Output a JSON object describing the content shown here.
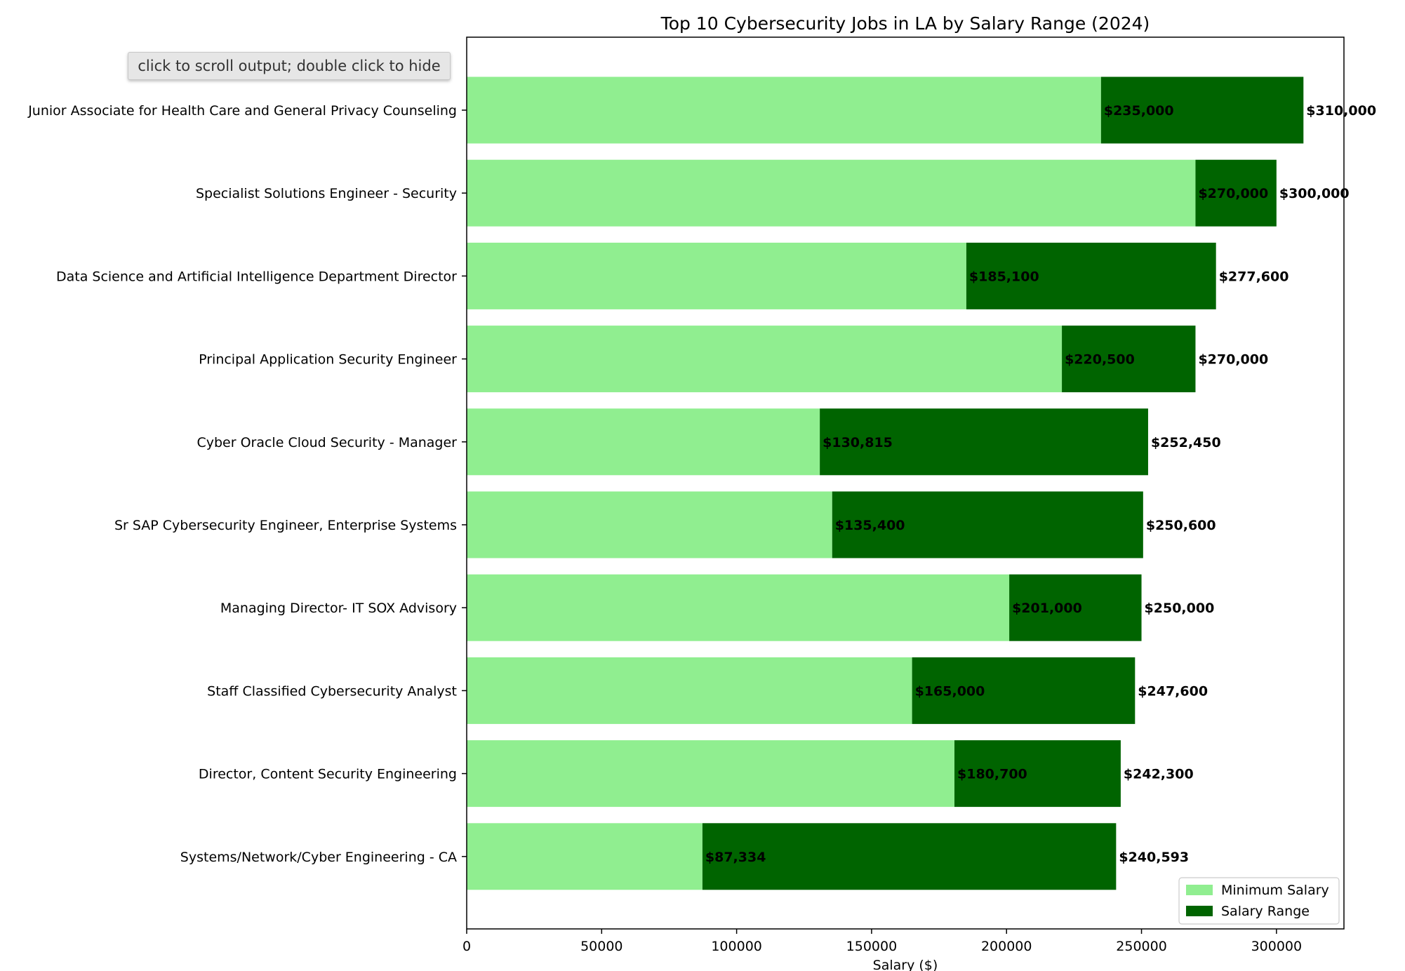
{
  "output_toggle": {
    "label": "click to scroll output; double click to hide"
  },
  "chart_data": {
    "type": "bar",
    "orientation": "horizontal",
    "stacked": true,
    "title": "Top 10 Cybersecurity Jobs in LA by Salary Range (2024)",
    "xlabel": "Salary ($)",
    "ylabel": "",
    "xlim": [
      0,
      325000
    ],
    "xticks": [
      0,
      50000,
      100000,
      150000,
      200000,
      250000,
      300000
    ],
    "grid": false,
    "legend": "bottom-right",
    "categories": [
      "Junior Associate for Health Care and General Privacy Counseling",
      "Specialist Solutions Engineer - Security",
      "Data Science and Artificial Intelligence Department Director",
      "Principal Application Security Engineer",
      "Cyber Oracle Cloud Security - Manager",
      "Sr SAP Cybersecurity Engineer, Enterprise Systems",
      "Managing Director- IT SOX Advisory",
      "Staff Classified Cybersecurity Analyst",
      "Director, Content Security Engineering",
      "Systems/Network/Cyber Engineering - CA"
    ],
    "series": [
      {
        "name": "Minimum Salary",
        "color": "#90ee90",
        "values": [
          235000,
          270000,
          185100,
          220500,
          130815,
          135400,
          201000,
          165000,
          180700,
          87334
        ]
      },
      {
        "name": "Salary Range",
        "color": "#006400",
        "values": [
          75000,
          30000,
          92500,
          49500,
          121635,
          115200,
          49000,
          82600,
          61600,
          153259
        ]
      }
    ],
    "min_labels": [
      "$235,000",
      "$270,000",
      "$185,100",
      "$220,500",
      "$130,815",
      "$135,400",
      "$201,000",
      "$165,000",
      "$180,700",
      "$87,334"
    ],
    "max_labels": [
      "$310,000",
      "$300,000",
      "$277,600",
      "$270,000",
      "$252,450",
      "$250,600",
      "$250,000",
      "$247,600",
      "$242,300",
      "$240,593"
    ]
  }
}
